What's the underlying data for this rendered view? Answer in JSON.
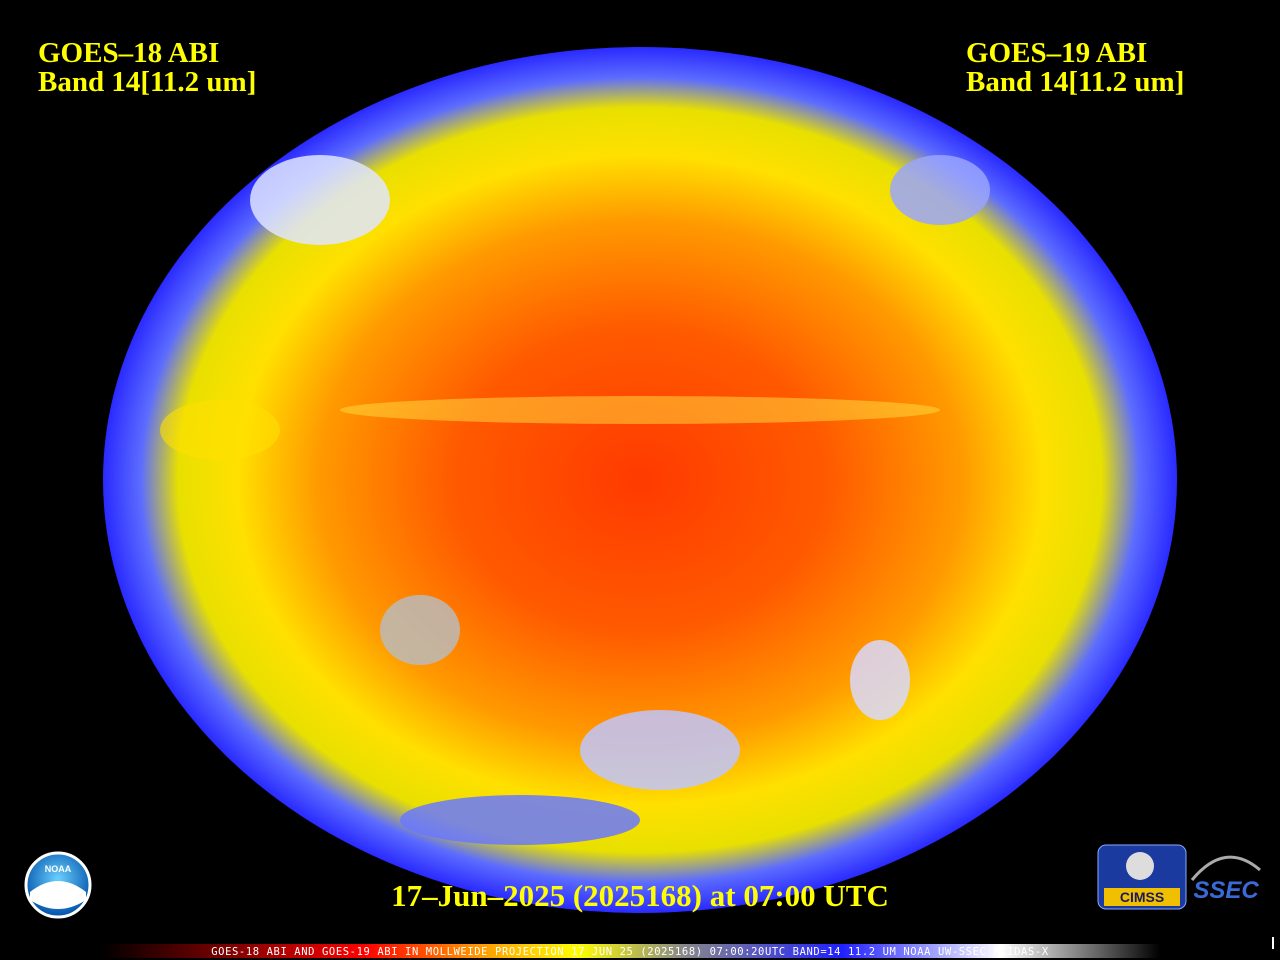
{
  "header": {
    "left": {
      "title": "GOES–18 ABI",
      "band": "Band 14[11.2 um]"
    },
    "right": {
      "title": "GOES–19 ABI",
      "band": "Band 14[11.2 um]"
    }
  },
  "timestamp": "17–Jun–2025 (2025168) at 07:00 UTC",
  "footer": "GOES-18 ABI AND GOES-19 ABI IN MOLLWEIDE PROJECTION 17 JUN 25 (2025168) 07:00:20UTC BAND=14 11.2 UM NOAA UW-SSEC MCIDAS-X",
  "logos": {
    "noaa": "NOAA",
    "cimss": "CIMSS",
    "ssec": "SSEC"
  }
}
